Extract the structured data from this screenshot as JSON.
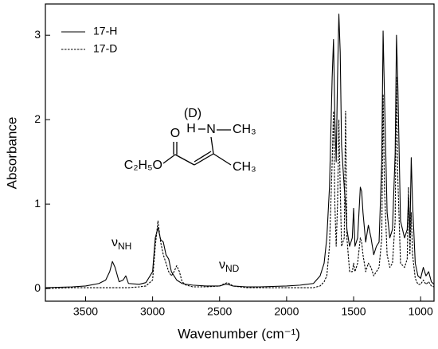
{
  "chart_data": {
    "type": "line",
    "xlabel": "Wavenumber (cm⁻¹)",
    "ylabel": "Absorbance",
    "x": [
      3800,
      3600,
      3500,
      3400,
      3350,
      3320,
      3300,
      3280,
      3250,
      3220,
      3200,
      3180,
      3100,
      3050,
      3000,
      2980,
      2960,
      2940,
      2920,
      2900,
      2880,
      2860,
      2840,
      2820,
      2800,
      2780,
      2750,
      2700,
      2600,
      2500,
      2460,
      2440,
      2420,
      2400,
      2300,
      2200,
      2000,
      1900,
      1800,
      1750,
      1720,
      1700,
      1680,
      1660,
      1650,
      1640,
      1630,
      1620,
      1610,
      1600,
      1590,
      1570,
      1560,
      1550,
      1530,
      1510,
      1500,
      1490,
      1470,
      1450,
      1440,
      1430,
      1410,
      1390,
      1370,
      1350,
      1330,
      1310,
      1290,
      1280,
      1270,
      1250,
      1230,
      1210,
      1190,
      1180,
      1170,
      1150,
      1120,
      1100,
      1090,
      1080,
      1070,
      1060,
      1040,
      1020,
      1000,
      980,
      960,
      940,
      920,
      900
    ],
    "series": [
      {
        "name": "17-H",
        "color": "#000000",
        "dash": "solid",
        "values": [
          0.01,
          0.02,
          0.03,
          0.06,
          0.1,
          0.2,
          0.32,
          0.25,
          0.08,
          0.1,
          0.15,
          0.06,
          0.05,
          0.07,
          0.2,
          0.6,
          0.72,
          0.58,
          0.55,
          0.4,
          0.35,
          0.2,
          0.15,
          0.1,
          0.08,
          0.06,
          0.05,
          0.04,
          0.03,
          0.03,
          0.05,
          0.05,
          0.04,
          0.03,
          0.02,
          0.02,
          0.03,
          0.04,
          0.06,
          0.15,
          0.3,
          0.6,
          1.2,
          2.5,
          2.95,
          2.0,
          1.5,
          2.5,
          3.25,
          2.8,
          1.7,
          1.2,
          1.0,
          0.7,
          0.5,
          0.6,
          0.95,
          0.5,
          0.6,
          1.2,
          1.15,
          0.9,
          0.55,
          0.75,
          0.6,
          0.4,
          0.5,
          0.55,
          1.5,
          3.05,
          2.3,
          0.9,
          0.6,
          0.7,
          1.6,
          3.0,
          2.4,
          0.8,
          0.6,
          0.7,
          1.1,
          0.6,
          1.55,
          1.0,
          0.3,
          0.15,
          0.12,
          0.25,
          0.15,
          0.2,
          0.08,
          0.05
        ]
      },
      {
        "name": "17-D",
        "color": "#000000",
        "dash": "dashed",
        "values": [
          0.0,
          0.01,
          0.01,
          0.01,
          0.01,
          0.01,
          0.01,
          0.01,
          0.01,
          0.01,
          0.01,
          0.01,
          0.02,
          0.03,
          0.1,
          0.5,
          0.8,
          0.55,
          0.4,
          0.3,
          0.2,
          0.15,
          0.2,
          0.27,
          0.2,
          0.08,
          0.04,
          0.02,
          0.02,
          0.03,
          0.06,
          0.07,
          0.05,
          0.03,
          0.01,
          0.01,
          0.01,
          0.01,
          0.01,
          0.03,
          0.08,
          0.15,
          0.5,
          1.5,
          2.1,
          1.0,
          0.5,
          1.0,
          2.0,
          1.2,
          0.5,
          0.6,
          2.1,
          0.6,
          0.2,
          0.2,
          0.3,
          0.2,
          0.3,
          0.6,
          0.55,
          0.4,
          0.2,
          0.3,
          0.25,
          0.15,
          0.2,
          0.25,
          0.6,
          2.3,
          1.2,
          0.4,
          0.25,
          0.3,
          0.8,
          2.5,
          1.3,
          0.3,
          0.25,
          0.35,
          1.2,
          0.4,
          0.9,
          0.4,
          0.12,
          0.05,
          0.05,
          0.1,
          0.05,
          0.08,
          0.03,
          0.02
        ]
      }
    ],
    "xlim": [
      3800,
      900
    ],
    "xticks": [
      3500,
      3000,
      2500,
      2000,
      1500,
      1000
    ],
    "ylim": [
      -0.15,
      3.37
    ],
    "yticks": [
      0,
      1,
      2,
      3
    ],
    "legend": "upper left",
    "annotations": [
      {
        "symbol": "ν",
        "sub": "NH"
      },
      {
        "symbol": "ν",
        "sub": "ND"
      }
    ],
    "molecule": [
      "(D)",
      "H",
      "N",
      "CH₃",
      "O",
      "C₂H₅O",
      "CH₃"
    ]
  }
}
